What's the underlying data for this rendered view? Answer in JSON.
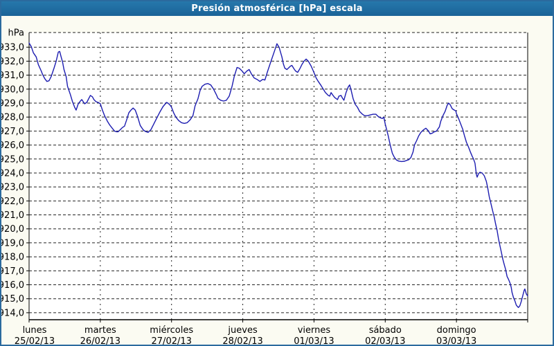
{
  "window": {
    "title": "Presión atmosférica [hPa] escala"
  },
  "colors": {
    "title_bar": "#1e6ba3",
    "title_text": "#ffffff",
    "border": "#2b6a9e",
    "background": "#fbfbf2",
    "plot_background": "#ffffff",
    "grid": "#222222",
    "axis": "#000000",
    "label_text": "#000000",
    "line": "#1c1cb0"
  },
  "chart_data": {
    "type": "line",
    "title": "Presión atmosférica [hPa] escala",
    "ylabel": "hPa",
    "unit": "hPa",
    "grid": "dashed",
    "legend": "none",
    "ylim": [
      913.5,
      934.05
    ],
    "x_range_days": [
      0,
      7
    ],
    "y_ticks": [
      {
        "value": 933,
        "label": "933,0"
      },
      {
        "value": 932,
        "label": "932,0"
      },
      {
        "value": 931,
        "label": "931,0"
      },
      {
        "value": 930,
        "label": "930,0"
      },
      {
        "value": 929,
        "label": "929,0"
      },
      {
        "value": 928,
        "label": "928,0"
      },
      {
        "value": 927,
        "label": "927,0"
      },
      {
        "value": 926,
        "label": "926,0"
      },
      {
        "value": 925,
        "label": "925,0"
      },
      {
        "value": 924,
        "label": "924,0"
      },
      {
        "value": 923,
        "label": "923,0"
      },
      {
        "value": 922,
        "label": "922,0"
      },
      {
        "value": 921,
        "label": "921,0"
      },
      {
        "value": 920,
        "label": "920,0"
      },
      {
        "value": 919,
        "label": "919,0"
      },
      {
        "value": 918,
        "label": "918,0"
      },
      {
        "value": 917,
        "label": "917,0"
      },
      {
        "value": 916,
        "label": "916,0"
      },
      {
        "value": 915,
        "label": "915,0"
      },
      {
        "value": 914,
        "label": "914,0"
      }
    ],
    "x_days": [
      {
        "name": "lunes",
        "date": "25/02/13"
      },
      {
        "name": "martes",
        "date": "26/02/13"
      },
      {
        "name": "miércoles",
        "date": "27/02/13"
      },
      {
        "name": "jueves",
        "date": "28/02/13"
      },
      {
        "name": "viernes",
        "date": "01/03/13"
      },
      {
        "name": "sábado",
        "date": "02/03/13"
      },
      {
        "name": "domingo",
        "date": "03/03/13"
      }
    ],
    "series": [
      {
        "name": "Presión atmosférica",
        "color": "#1c1cb0",
        "points": [
          [
            0,
            933.3
          ],
          [
            0.03,
            933.05
          ],
          [
            0.06,
            932.6
          ],
          [
            0.1,
            932.3
          ],
          [
            0.13,
            931.75
          ],
          [
            0.17,
            931.3
          ],
          [
            0.19,
            931.05
          ],
          [
            0.22,
            930.75
          ],
          [
            0.25,
            930.55
          ],
          [
            0.28,
            930.6
          ],
          [
            0.31,
            930.9
          ],
          [
            0.35,
            931.5
          ],
          [
            0.38,
            932.0
          ],
          [
            0.41,
            932.65
          ],
          [
            0.43,
            932.7
          ],
          [
            0.45,
            932.3
          ],
          [
            0.47,
            931.95
          ],
          [
            0.49,
            931.4
          ],
          [
            0.52,
            930.9
          ],
          [
            0.54,
            930.2
          ],
          [
            0.58,
            929.6
          ],
          [
            0.61,
            929.1
          ],
          [
            0.64,
            928.7
          ],
          [
            0.66,
            928.5
          ],
          [
            0.69,
            928.95
          ],
          [
            0.72,
            929.15
          ],
          [
            0.74,
            929.25
          ],
          [
            0.78,
            928.95
          ],
          [
            0.81,
            929.05
          ],
          [
            0.84,
            929.35
          ],
          [
            0.86,
            929.55
          ],
          [
            0.89,
            929.45
          ],
          [
            0.91,
            929.25
          ],
          [
            0.94,
            929.1
          ],
          [
            0.97,
            929.05
          ],
          [
            1.0,
            928.95
          ],
          [
            1.03,
            928.5
          ],
          [
            1.06,
            928.1
          ],
          [
            1.1,
            927.7
          ],
          [
            1.13,
            927.45
          ],
          [
            1.16,
            927.25
          ],
          [
            1.2,
            927.0
          ],
          [
            1.23,
            926.95
          ],
          [
            1.25,
            926.95
          ],
          [
            1.28,
            927.1
          ],
          [
            1.31,
            927.25
          ],
          [
            1.34,
            927.35
          ],
          [
            1.37,
            927.8
          ],
          [
            1.4,
            928.3
          ],
          [
            1.43,
            928.5
          ],
          [
            1.46,
            928.65
          ],
          [
            1.49,
            928.5
          ],
          [
            1.52,
            928.1
          ],
          [
            1.56,
            927.4
          ],
          [
            1.6,
            927.1
          ],
          [
            1.63,
            926.98
          ],
          [
            1.67,
            926.9
          ],
          [
            1.71,
            927.1
          ],
          [
            1.75,
            927.5
          ],
          [
            1.8,
            928.0
          ],
          [
            1.84,
            928.4
          ],
          [
            1.88,
            928.75
          ],
          [
            1.93,
            929.05
          ],
          [
            1.95,
            929.0
          ],
          [
            1.98,
            928.85
          ],
          [
            2.0,
            928.7
          ],
          [
            2.03,
            928.3
          ],
          [
            2.06,
            928.0
          ],
          [
            2.1,
            927.75
          ],
          [
            2.14,
            927.6
          ],
          [
            2.18,
            927.55
          ],
          [
            2.22,
            927.6
          ],
          [
            2.26,
            927.8
          ],
          [
            2.3,
            928.1
          ],
          [
            2.33,
            928.8
          ],
          [
            2.37,
            929.3
          ],
          [
            2.4,
            929.9
          ],
          [
            2.43,
            930.2
          ],
          [
            2.47,
            930.35
          ],
          [
            2.51,
            930.4
          ],
          [
            2.55,
            930.3
          ],
          [
            2.59,
            930.0
          ],
          [
            2.63,
            929.6
          ],
          [
            2.65,
            929.35
          ],
          [
            2.69,
            929.2
          ],
          [
            2.73,
            929.15
          ],
          [
            2.77,
            929.2
          ],
          [
            2.81,
            929.5
          ],
          [
            2.85,
            930.2
          ],
          [
            2.88,
            930.9
          ],
          [
            2.92,
            931.55
          ],
          [
            2.95,
            931.5
          ],
          [
            2.99,
            931.3
          ],
          [
            3.02,
            931.1
          ],
          [
            3.06,
            931.3
          ],
          [
            3.09,
            931.4
          ],
          [
            3.12,
            931.1
          ],
          [
            3.16,
            930.8
          ],
          [
            3.2,
            930.7
          ],
          [
            3.24,
            930.55
          ],
          [
            3.28,
            930.7
          ],
          [
            3.31,
            930.65
          ],
          [
            3.35,
            931.3
          ],
          [
            3.4,
            932.05
          ],
          [
            3.45,
            932.8
          ],
          [
            3.48,
            933.25
          ],
          [
            3.51,
            933.0
          ],
          [
            3.55,
            932.3
          ],
          [
            3.57,
            931.8
          ],
          [
            3.59,
            931.5
          ],
          [
            3.62,
            931.4
          ],
          [
            3.67,
            931.65
          ],
          [
            3.69,
            931.7
          ],
          [
            3.72,
            931.45
          ],
          [
            3.74,
            931.3
          ],
          [
            3.77,
            931.2
          ],
          [
            3.8,
            931.45
          ],
          [
            3.83,
            931.75
          ],
          [
            3.86,
            932.0
          ],
          [
            3.89,
            932.15
          ],
          [
            3.92,
            932.0
          ],
          [
            3.96,
            931.65
          ],
          [
            3.99,
            931.3
          ],
          [
            4.01,
            931.05
          ],
          [
            4.03,
            930.8
          ],
          [
            4.06,
            930.55
          ],
          [
            4.1,
            930.25
          ],
          [
            4.13,
            930.0
          ],
          [
            4.16,
            929.75
          ],
          [
            4.2,
            929.55
          ],
          [
            4.22,
            929.5
          ],
          [
            4.24,
            929.75
          ],
          [
            4.26,
            929.6
          ],
          [
            4.29,
            929.4
          ],
          [
            4.33,
            929.25
          ],
          [
            4.35,
            929.5
          ],
          [
            4.38,
            929.55
          ],
          [
            4.4,
            929.35
          ],
          [
            4.42,
            929.2
          ],
          [
            4.45,
            929.75
          ],
          [
            4.48,
            930.15
          ],
          [
            4.5,
            930.3
          ],
          [
            4.52,
            929.95
          ],
          [
            4.55,
            929.3
          ],
          [
            4.58,
            928.9
          ],
          [
            4.61,
            928.7
          ],
          [
            4.64,
            928.4
          ],
          [
            4.68,
            928.2
          ],
          [
            4.71,
            928.1
          ],
          [
            4.75,
            928.1
          ],
          [
            4.79,
            928.15
          ],
          [
            4.83,
            928.2
          ],
          [
            4.87,
            928.2
          ],
          [
            4.9,
            928.05
          ],
          [
            4.93,
            927.95
          ],
          [
            4.96,
            927.9
          ],
          [
            4.98,
            928.0
          ],
          [
            5.0,
            927.5
          ],
          [
            5.04,
            926.7
          ],
          [
            5.07,
            926.0
          ],
          [
            5.1,
            925.4
          ],
          [
            5.13,
            925.1
          ],
          [
            5.16,
            924.92
          ],
          [
            5.19,
            924.85
          ],
          [
            5.23,
            924.82
          ],
          [
            5.27,
            924.84
          ],
          [
            5.3,
            924.9
          ],
          [
            5.33,
            924.95
          ],
          [
            5.36,
            925.1
          ],
          [
            5.39,
            925.5
          ],
          [
            5.41,
            926.0
          ],
          [
            5.44,
            926.3
          ],
          [
            5.47,
            926.65
          ],
          [
            5.5,
            926.9
          ],
          [
            5.54,
            927.1
          ],
          [
            5.57,
            927.2
          ],
          [
            5.6,
            927.05
          ],
          [
            5.63,
            926.8
          ],
          [
            5.66,
            926.85
          ],
          [
            5.69,
            926.95
          ],
          [
            5.72,
            927.0
          ],
          [
            5.76,
            927.3
          ],
          [
            5.78,
            927.7
          ],
          [
            5.81,
            928.1
          ],
          [
            5.84,
            928.4
          ],
          [
            5.87,
            928.85
          ],
          [
            5.89,
            929.0
          ],
          [
            5.91,
            928.9
          ],
          [
            5.94,
            928.6
          ],
          [
            5.97,
            928.5
          ],
          [
            5.99,
            928.45
          ],
          [
            6.0,
            928.25
          ],
          [
            6.03,
            927.9
          ],
          [
            6.06,
            927.5
          ],
          [
            6.09,
            927.1
          ],
          [
            6.11,
            926.7
          ],
          [
            6.14,
            926.2
          ],
          [
            6.17,
            925.85
          ],
          [
            6.2,
            925.45
          ],
          [
            6.22,
            925.2
          ],
          [
            6.24,
            925.0
          ],
          [
            6.26,
            924.7
          ],
          [
            6.28,
            923.9
          ],
          [
            6.29,
            923.7
          ],
          [
            6.31,
            923.95
          ],
          [
            6.33,
            924.05
          ],
          [
            6.36,
            924.0
          ],
          [
            6.39,
            923.8
          ],
          [
            6.42,
            923.4
          ],
          [
            6.44,
            922.9
          ],
          [
            6.46,
            922.3
          ],
          [
            6.48,
            921.9
          ],
          [
            6.51,
            921.25
          ],
          [
            6.53,
            920.85
          ],
          [
            6.55,
            920.35
          ],
          [
            6.57,
            919.9
          ],
          [
            6.59,
            919.3
          ],
          [
            6.61,
            918.8
          ],
          [
            6.63,
            918.35
          ],
          [
            6.65,
            917.85
          ],
          [
            6.67,
            917.45
          ],
          [
            6.69,
            917.1
          ],
          [
            6.71,
            916.6
          ],
          [
            6.73,
            916.4
          ],
          [
            6.75,
            916.15
          ],
          [
            6.77,
            915.8
          ],
          [
            6.78,
            915.45
          ],
          [
            6.8,
            915.1
          ],
          [
            6.82,
            914.85
          ],
          [
            6.84,
            914.55
          ],
          [
            6.86,
            914.42
          ],
          [
            6.87,
            914.37
          ],
          [
            6.89,
            914.5
          ],
          [
            6.91,
            914.8
          ],
          [
            6.93,
            915.2
          ],
          [
            6.95,
            915.6
          ],
          [
            6.96,
            915.7
          ],
          [
            6.98,
            915.35
          ],
          [
            7.0,
            915.2
          ]
        ]
      }
    ]
  }
}
